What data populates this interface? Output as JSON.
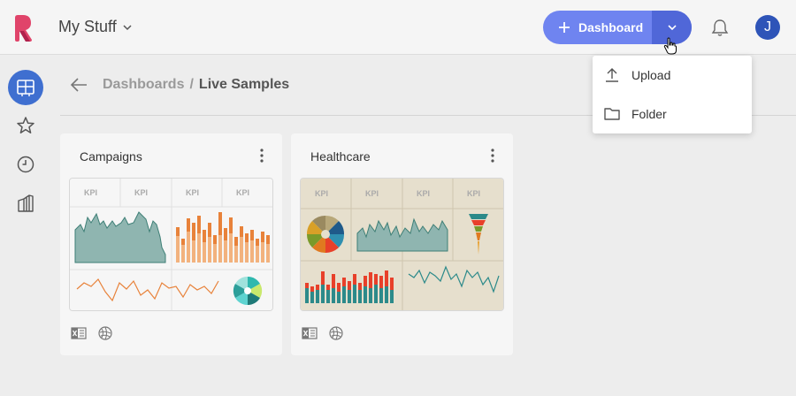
{
  "app": {
    "workspace_title": "My Stuff",
    "icons": {
      "logo": "brand-logo",
      "workspace_caret": "chevron-down-icon"
    }
  },
  "header": {
    "new_dashboard_label": "Dashboard",
    "icons": {
      "add": "plus-icon",
      "more": "chevron-down-icon",
      "notifications": "bell-icon"
    },
    "avatar_initial": "J",
    "colors": {
      "primary": "#6f84f0",
      "primary_dark": "#5067d8",
      "avatar": "#2e54b8"
    }
  },
  "sidebar": {
    "items": [
      {
        "icon": "dashboards-icon",
        "active": true
      },
      {
        "icon": "star-icon",
        "active": false
      },
      {
        "icon": "clock-icon",
        "active": false
      },
      {
        "icon": "library-icon",
        "active": false
      }
    ],
    "active_color": "#3f6fd0"
  },
  "breadcrumb": {
    "parent": "Dashboards",
    "separator": "/",
    "current": "Live Samples"
  },
  "dropdown": {
    "items": [
      {
        "label": "Upload",
        "icon": "upload-icon"
      },
      {
        "label": "Folder",
        "icon": "folder-icon"
      }
    ]
  },
  "cards": [
    {
      "title": "Campaigns",
      "kpi_labels": [
        "KPI",
        "KPI",
        "KPI",
        "KPI"
      ],
      "source_icons": [
        "excel-icon",
        "globe-icon"
      ],
      "theme": "light"
    },
    {
      "title": "Healthcare",
      "kpi_labels": [
        "KPI",
        "KPI",
        "KPI",
        "KPI"
      ],
      "source_icons": [
        "excel-icon",
        "globe-icon"
      ],
      "theme": "beige"
    }
  ]
}
